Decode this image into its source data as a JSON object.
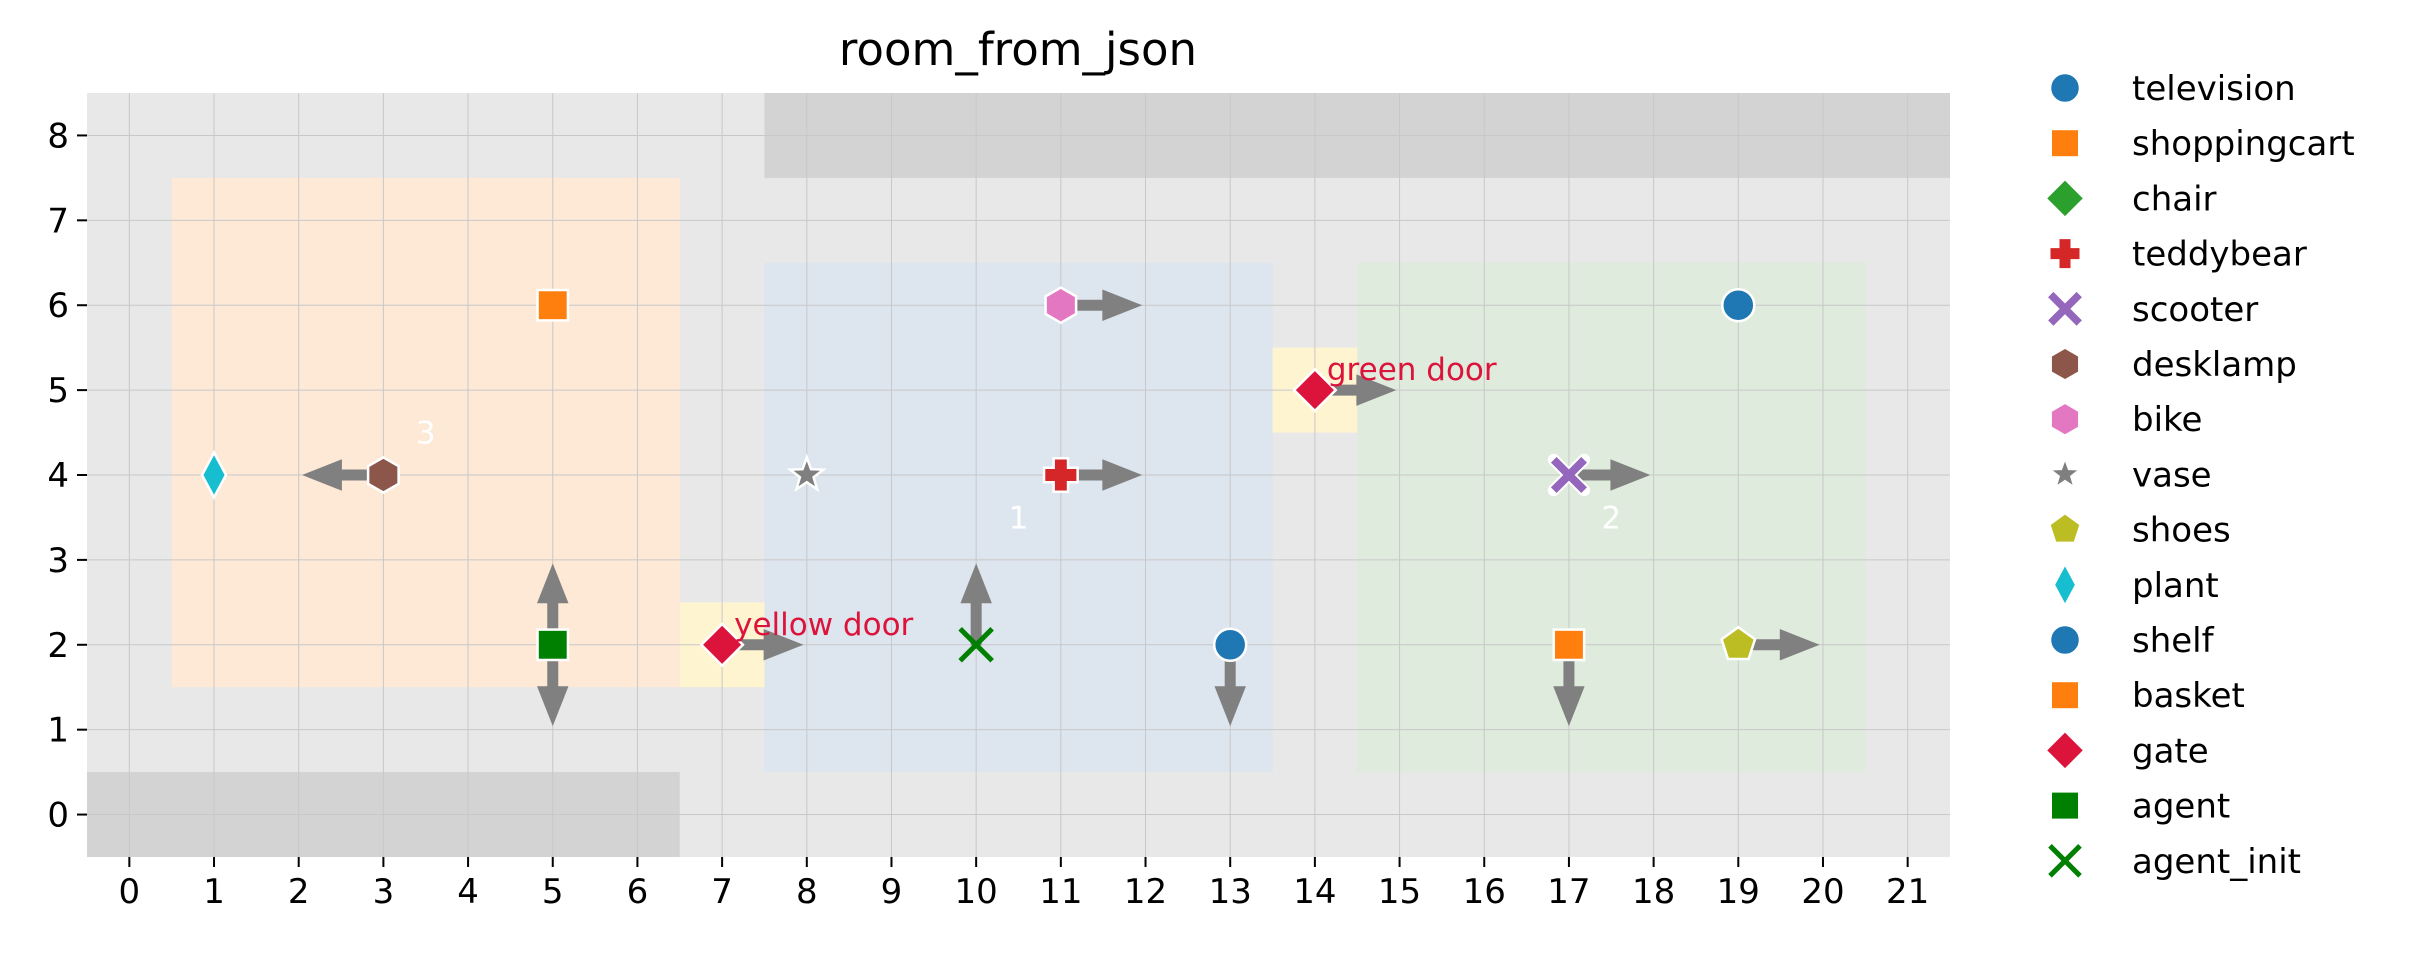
{
  "chart_data": {
    "type": "scatter",
    "title": "room_from_json",
    "xlabel": "",
    "ylabel": "",
    "xlim": [
      -0.5,
      21.5
    ],
    "ylim": [
      -0.5,
      8.5
    ],
    "xticks": [
      0,
      1,
      2,
      3,
      4,
      5,
      6,
      7,
      8,
      9,
      10,
      11,
      12,
      13,
      14,
      15,
      16,
      17,
      18,
      19,
      20,
      21
    ],
    "yticks": [
      0,
      1,
      2,
      3,
      4,
      5,
      6,
      7,
      8
    ],
    "grid": true,
    "legend_position": "right",
    "background_color": "#e8e8e8",
    "walls": [
      {
        "x0": 7.5,
        "x1": 21.5,
        "y0": 7.5,
        "y1": 8.5,
        "color": "#d3d3d3"
      },
      {
        "x0": -0.5,
        "x1": 6.5,
        "y0": -0.5,
        "y1": 0.5,
        "color": "#d3d3d3"
      }
    ],
    "rooms": [
      {
        "label": "3",
        "x0": 0.5,
        "x1": 6.5,
        "y0": 1.5,
        "y1": 7.5,
        "color": "#fde9d6",
        "label_x": 3.5,
        "label_y": 4.5
      },
      {
        "label": "1",
        "x0": 7.5,
        "x1": 13.5,
        "y0": 0.5,
        "y1": 6.5,
        "color": "#dde5ee",
        "label_x": 10.5,
        "label_y": 3.5
      },
      {
        "label": "2",
        "x0": 14.5,
        "x1": 20.5,
        "y0": 0.5,
        "y1": 6.5,
        "color": "#dfebdd",
        "label_x": 17.5,
        "label_y": 3.5
      }
    ],
    "doors": [
      {
        "label": "yellow door",
        "x": 7,
        "y": 2,
        "color": "#fff4d0",
        "label_color": "#dc143c"
      },
      {
        "label": "green door",
        "x": 14,
        "y": 5,
        "color": "#fff4d0",
        "label_color": "#dc143c"
      }
    ],
    "series": [
      {
        "name": "television",
        "marker": "circle",
        "color": "#1f77b4",
        "points": [
          [
            19,
            6
          ]
        ],
        "arrows": []
      },
      {
        "name": "shoppingcart",
        "marker": "square",
        "color": "#ff7f0e",
        "points": [
          [
            5,
            6
          ]
        ],
        "arrows": []
      },
      {
        "name": "chair",
        "marker": "diamond",
        "color": "#2ca02c",
        "points": [],
        "arrows": []
      },
      {
        "name": "teddybear",
        "marker": "plus",
        "color": "#d62728",
        "points": [
          [
            11,
            4
          ]
        ],
        "arrows": [
          [
            11,
            4,
            "right"
          ]
        ]
      },
      {
        "name": "scooter",
        "marker": "x",
        "color": "#9467bd",
        "points": [
          [
            17,
            4
          ]
        ],
        "arrows": [
          [
            17,
            4,
            "right"
          ]
        ]
      },
      {
        "name": "desklamp",
        "marker": "hexagon",
        "color": "#8c564b",
        "points": [
          [
            3,
            4
          ]
        ],
        "arrows": [
          [
            3,
            4,
            "left"
          ]
        ]
      },
      {
        "name": "bike",
        "marker": "hexagon",
        "color": "#e377c2",
        "points": [
          [
            11,
            6
          ]
        ],
        "arrows": [
          [
            11,
            6,
            "right"
          ]
        ]
      },
      {
        "name": "vase",
        "marker": "star",
        "color": "#7f7f7f",
        "points": [
          [
            8,
            4
          ]
        ],
        "arrows": []
      },
      {
        "name": "shoes",
        "marker": "pentagon",
        "color": "#bcbd22",
        "points": [
          [
            19,
            2
          ]
        ],
        "arrows": [
          [
            19,
            2,
            "right"
          ]
        ]
      },
      {
        "name": "plant",
        "marker": "thin_diamond",
        "color": "#17becf",
        "points": [
          [
            1,
            4
          ]
        ],
        "arrows": []
      },
      {
        "name": "shelf",
        "marker": "circle",
        "color": "#1f77b4",
        "points": [
          [
            13,
            2
          ]
        ],
        "arrows": [
          [
            13,
            2,
            "down"
          ]
        ]
      },
      {
        "name": "basket",
        "marker": "square",
        "color": "#ff7f0e",
        "points": [
          [
            17,
            2
          ]
        ],
        "arrows": [
          [
            17,
            2,
            "down"
          ]
        ]
      },
      {
        "name": "gate",
        "marker": "diamond",
        "color": "#dc143c",
        "points": [
          [
            7,
            2
          ],
          [
            14,
            5
          ]
        ],
        "arrows": [
          [
            7,
            2,
            "right"
          ],
          [
            14,
            5,
            "right"
          ]
        ]
      },
      {
        "name": "agent",
        "marker": "square",
        "color": "#008000",
        "points": [
          [
            5,
            2
          ]
        ],
        "arrows": [
          [
            5,
            2,
            "up"
          ],
          [
            5,
            2,
            "down"
          ]
        ]
      },
      {
        "name": "agent_init",
        "marker": "bigx",
        "color": "#008000",
        "points": [
          [
            10,
            2
          ]
        ],
        "arrows": [
          [
            10,
            2,
            "up"
          ]
        ]
      }
    ]
  }
}
